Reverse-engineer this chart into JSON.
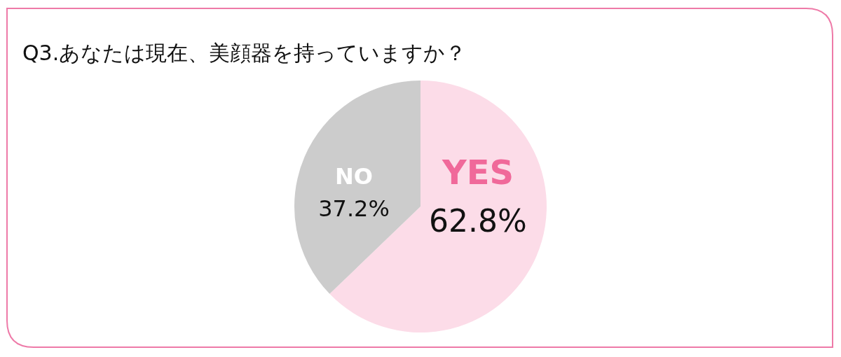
{
  "chart_data": {
    "type": "pie",
    "title": "Q3.あなたは現在、美顔器を持っていますか？",
    "categories": [
      "YES",
      "NO"
    ],
    "values": [
      62.8,
      37.2
    ],
    "colors": [
      "#fcdce8",
      "#cccccc"
    ],
    "value_labels": [
      "62.8%",
      "37.2%"
    ]
  }
}
